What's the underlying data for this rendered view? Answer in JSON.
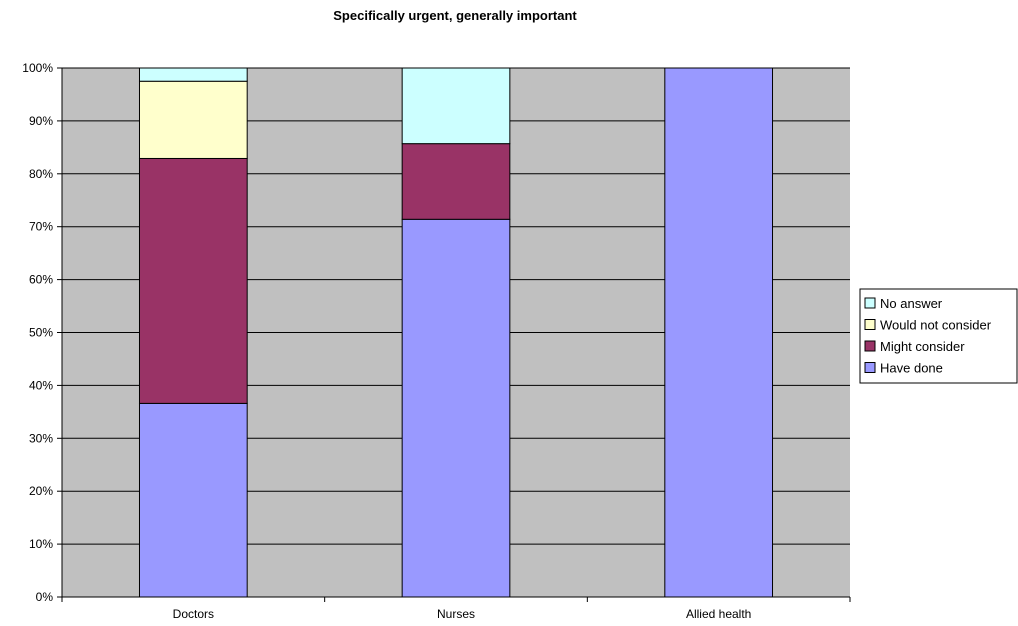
{
  "chart_data": {
    "type": "bar",
    "stacked": true,
    "title": "Specifically urgent, generally important",
    "xlabel": "",
    "ylabel": "",
    "ylim": [
      0,
      100
    ],
    "y_ticks": [
      "0%",
      "10%",
      "20%",
      "30%",
      "40%",
      "50%",
      "60%",
      "70%",
      "80%",
      "90%",
      "100%"
    ],
    "grid": true,
    "legend_position": "right",
    "plot_background": "#c0c0c0",
    "categories": [
      "Doctors",
      "Nurses",
      "Allied health"
    ],
    "series": [
      {
        "name": "Have done",
        "color": "#9999ff",
        "values": [
          36.6,
          71.4,
          100
        ]
      },
      {
        "name": "Might consider",
        "color": "#993366",
        "values": [
          46.3,
          14.3,
          0
        ]
      },
      {
        "name": "Would not consider",
        "color": "#ffffcc",
        "values": [
          14.6,
          0,
          0
        ]
      },
      {
        "name": "No answer",
        "color": "#ccffff",
        "values": [
          2.5,
          14.3,
          0
        ]
      }
    ],
    "legend_order": [
      "No answer",
      "Would not consider",
      "Might consider",
      "Have done"
    ]
  }
}
